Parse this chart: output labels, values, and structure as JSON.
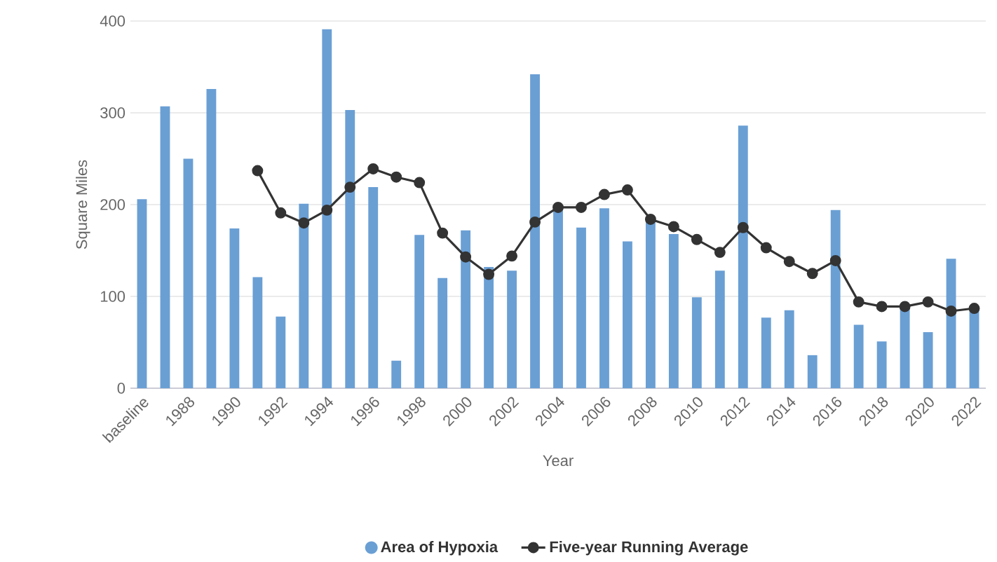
{
  "chart_data": {
    "type": "bar",
    "xlabel": "Year",
    "ylabel": "Square Miles",
    "categories": [
      "baseline",
      null,
      "1988",
      null,
      "1990",
      null,
      "1992",
      null,
      "1994",
      null,
      "1996",
      null,
      "1998",
      null,
      "2000",
      null,
      "2002",
      null,
      "2004",
      null,
      "2006",
      null,
      "2008",
      null,
      "2010",
      null,
      "2012",
      null,
      "2014",
      null,
      "2016",
      null,
      "2018",
      null,
      "2020",
      null,
      "2022"
    ],
    "series": [
      {
        "name": "Area of Hypoxia",
        "color": "#6a9fd4",
        "values": [
          206,
          307,
          250,
          326,
          174,
          121,
          78,
          201,
          391,
          303,
          219,
          30,
          167,
          120,
          172,
          132,
          128,
          342,
          197,
          175,
          196,
          160,
          182,
          168,
          99,
          128,
          286,
          77,
          85,
          36,
          194,
          69,
          51,
          89,
          61,
          141,
          86
        ]
      },
      {
        "name": "Five-year Running Average",
        "type": "line",
        "color": "#333333",
        "marker": "circle",
        "values": [
          null,
          null,
          null,
          null,
          null,
          237,
          191,
          180,
          194,
          219,
          239,
          230,
          224,
          169,
          143,
          124,
          144,
          181,
          197,
          197,
          211,
          216,
          184,
          176,
          162,
          148,
          175,
          153,
          138,
          125,
          139,
          94,
          89,
          89,
          94,
          84,
          87
        ]
      }
    ],
    "ylim": [
      0,
      400
    ],
    "yticks": [
      0,
      100,
      200,
      300,
      400
    ],
    "grid": "y",
    "legend": "bottom"
  }
}
